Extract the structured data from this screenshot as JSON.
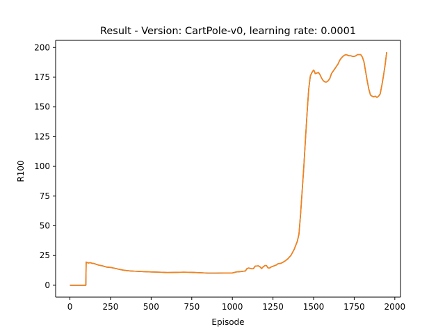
{
  "chart_data": {
    "type": "line",
    "title": "Result - Version: CartPole-v0, learning rate: 0.0001",
    "xlabel": "Episode",
    "ylabel": "R100",
    "xlim": [
      -88,
      2035
    ],
    "ylim": [
      -10,
      206
    ],
    "xticks": [
      0,
      250,
      500,
      750,
      1000,
      1250,
      1500,
      1750,
      2000
    ],
    "yticks": [
      0,
      25,
      50,
      75,
      100,
      125,
      150,
      175,
      200
    ],
    "grid": false,
    "legend": "none",
    "colors": {
      "series_under": "#1f77b4",
      "series_over": "#ff7f0e",
      "axis": "#000000",
      "background": "#ffffff"
    },
    "series": [
      {
        "values": [
          [
            0,
            0
          ],
          [
            20,
            0
          ],
          [
            40,
            0
          ],
          [
            60,
            0
          ],
          [
            80,
            0
          ],
          [
            98,
            0
          ],
          [
            100,
            19.5
          ],
          [
            105,
            19
          ],
          [
            110,
            19
          ],
          [
            115,
            18.7
          ],
          [
            125,
            19
          ],
          [
            135,
            18.5
          ],
          [
            150,
            18.2
          ],
          [
            175,
            17
          ],
          [
            200,
            16.3
          ],
          [
            225,
            15.3
          ],
          [
            250,
            15
          ],
          [
            275,
            14.3
          ],
          [
            300,
            13.5
          ],
          [
            325,
            12.8
          ],
          [
            350,
            12.3
          ],
          [
            375,
            12
          ],
          [
            400,
            11.8
          ],
          [
            450,
            11.5
          ],
          [
            500,
            11.2
          ],
          [
            550,
            11
          ],
          [
            600,
            10.7
          ],
          [
            650,
            10.8
          ],
          [
            700,
            11
          ],
          [
            750,
            10.8
          ],
          [
            800,
            10.5
          ],
          [
            850,
            10.2
          ],
          [
            900,
            10.2
          ],
          [
            950,
            10.3
          ],
          [
            1000,
            10.3
          ],
          [
            1025,
            11.2
          ],
          [
            1050,
            11.5
          ],
          [
            1070,
            11.8
          ],
          [
            1080,
            12
          ],
          [
            1090,
            14
          ],
          [
            1100,
            14.5
          ],
          [
            1110,
            14.2
          ],
          [
            1120,
            13.8
          ],
          [
            1130,
            14
          ],
          [
            1140,
            16
          ],
          [
            1150,
            16.2
          ],
          [
            1160,
            16.3
          ],
          [
            1170,
            15.5
          ],
          [
            1180,
            14
          ],
          [
            1190,
            15.5
          ],
          [
            1200,
            16.5
          ],
          [
            1210,
            16.5
          ],
          [
            1220,
            14.5
          ],
          [
            1230,
            14.5
          ],
          [
            1240,
            15.5
          ],
          [
            1250,
            16
          ],
          [
            1260,
            16.5
          ],
          [
            1270,
            17
          ],
          [
            1280,
            18
          ],
          [
            1300,
            18.5
          ],
          [
            1320,
            20
          ],
          [
            1340,
            22
          ],
          [
            1360,
            25
          ],
          [
            1380,
            30
          ],
          [
            1400,
            37
          ],
          [
            1410,
            43
          ],
          [
            1420,
            60
          ],
          [
            1430,
            80
          ],
          [
            1440,
            100
          ],
          [
            1450,
            123
          ],
          [
            1460,
            145
          ],
          [
            1470,
            165
          ],
          [
            1480,
            176
          ],
          [
            1490,
            179
          ],
          [
            1500,
            181
          ],
          [
            1505,
            180
          ],
          [
            1510,
            178
          ],
          [
            1520,
            178.5
          ],
          [
            1530,
            179
          ],
          [
            1540,
            177
          ],
          [
            1550,
            174
          ],
          [
            1560,
            172
          ],
          [
            1570,
            171
          ],
          [
            1580,
            171
          ],
          [
            1590,
            172
          ],
          [
            1600,
            174
          ],
          [
            1610,
            178
          ],
          [
            1620,
            180
          ],
          [
            1630,
            182
          ],
          [
            1640,
            184
          ],
          [
            1650,
            186
          ],
          [
            1660,
            189
          ],
          [
            1670,
            191
          ],
          [
            1680,
            192.5
          ],
          [
            1690,
            193.5
          ],
          [
            1700,
            194
          ],
          [
            1710,
            193.5
          ],
          [
            1720,
            193
          ],
          [
            1730,
            193
          ],
          [
            1740,
            192.5
          ],
          [
            1750,
            192.5
          ],
          [
            1760,
            193
          ],
          [
            1770,
            194
          ],
          [
            1780,
            194
          ],
          [
            1790,
            194
          ],
          [
            1800,
            192
          ],
          [
            1810,
            188
          ],
          [
            1820,
            180
          ],
          [
            1830,
            172
          ],
          [
            1840,
            165
          ],
          [
            1850,
            160
          ],
          [
            1860,
            159
          ],
          [
            1870,
            158.5
          ],
          [
            1880,
            159
          ],
          [
            1890,
            158
          ],
          [
            1900,
            159
          ],
          [
            1910,
            161
          ],
          [
            1920,
            168
          ],
          [
            1930,
            176
          ],
          [
            1940,
            185
          ],
          [
            1950,
            196
          ]
        ]
      }
    ]
  }
}
